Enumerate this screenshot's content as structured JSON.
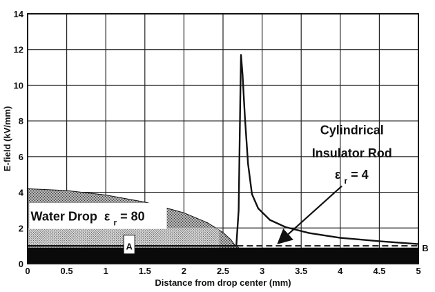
{
  "chart_data": {
    "type": "line",
    "title": "",
    "xlabel": "Distance from drop center (mm)",
    "ylabel": "E-field (kV/mm)",
    "xlim": [
      0,
      5
    ],
    "ylim": [
      0,
      14
    ],
    "xticks": [
      "0",
      "0.5",
      "1",
      "1.5",
      "2",
      "2.5",
      "3",
      "3.5",
      "4",
      "4.5",
      "5"
    ],
    "yticks": [
      "0",
      "2",
      "4",
      "6",
      "8",
      "10",
      "12",
      "14"
    ],
    "grid": true,
    "series": [
      {
        "style": "solid",
        "x": [
          0,
          2.67,
          2.7,
          2.72,
          2.73,
          2.75,
          2.78,
          2.82,
          2.87,
          2.95,
          3.1,
          3.3,
          3.6,
          4.0,
          4.5,
          5.0
        ],
        "y": [
          1.0,
          1.0,
          3.0,
          9.0,
          11.7,
          10.6,
          8.2,
          5.6,
          3.9,
          3.1,
          2.45,
          2.05,
          1.72,
          1.45,
          1.26,
          1.1
        ]
      },
      {
        "style": "dashed",
        "x": [
          2.68,
          5.0
        ],
        "y": [
          1.0,
          1.0
        ]
      }
    ],
    "regions": [
      {
        "name": "water-drop",
        "x": [
          0,
          0.5,
          1.0,
          1.5,
          2.0,
          2.3,
          2.5,
          2.6,
          2.65,
          2.7
        ],
        "y": [
          4.2,
          4.1,
          3.85,
          3.45,
          2.85,
          2.3,
          1.75,
          1.35,
          1.05,
          0.9
        ]
      },
      {
        "name": "substrate",
        "y_top": 0.9
      }
    ],
    "annotations": {
      "water_drop_text": "Water Drop",
      "water_drop_eps_base": "ε",
      "water_drop_eps_sub": "r",
      "water_drop_eps_value": " = 80",
      "rod_line1": "Cylindrical",
      "rod_line2": "Insulator Rod",
      "rod_eps_base": "ε",
      "rod_eps_sub": "r",
      "rod_eps_value": " = 4",
      "point_a": "A",
      "point_b": "B"
    }
  }
}
